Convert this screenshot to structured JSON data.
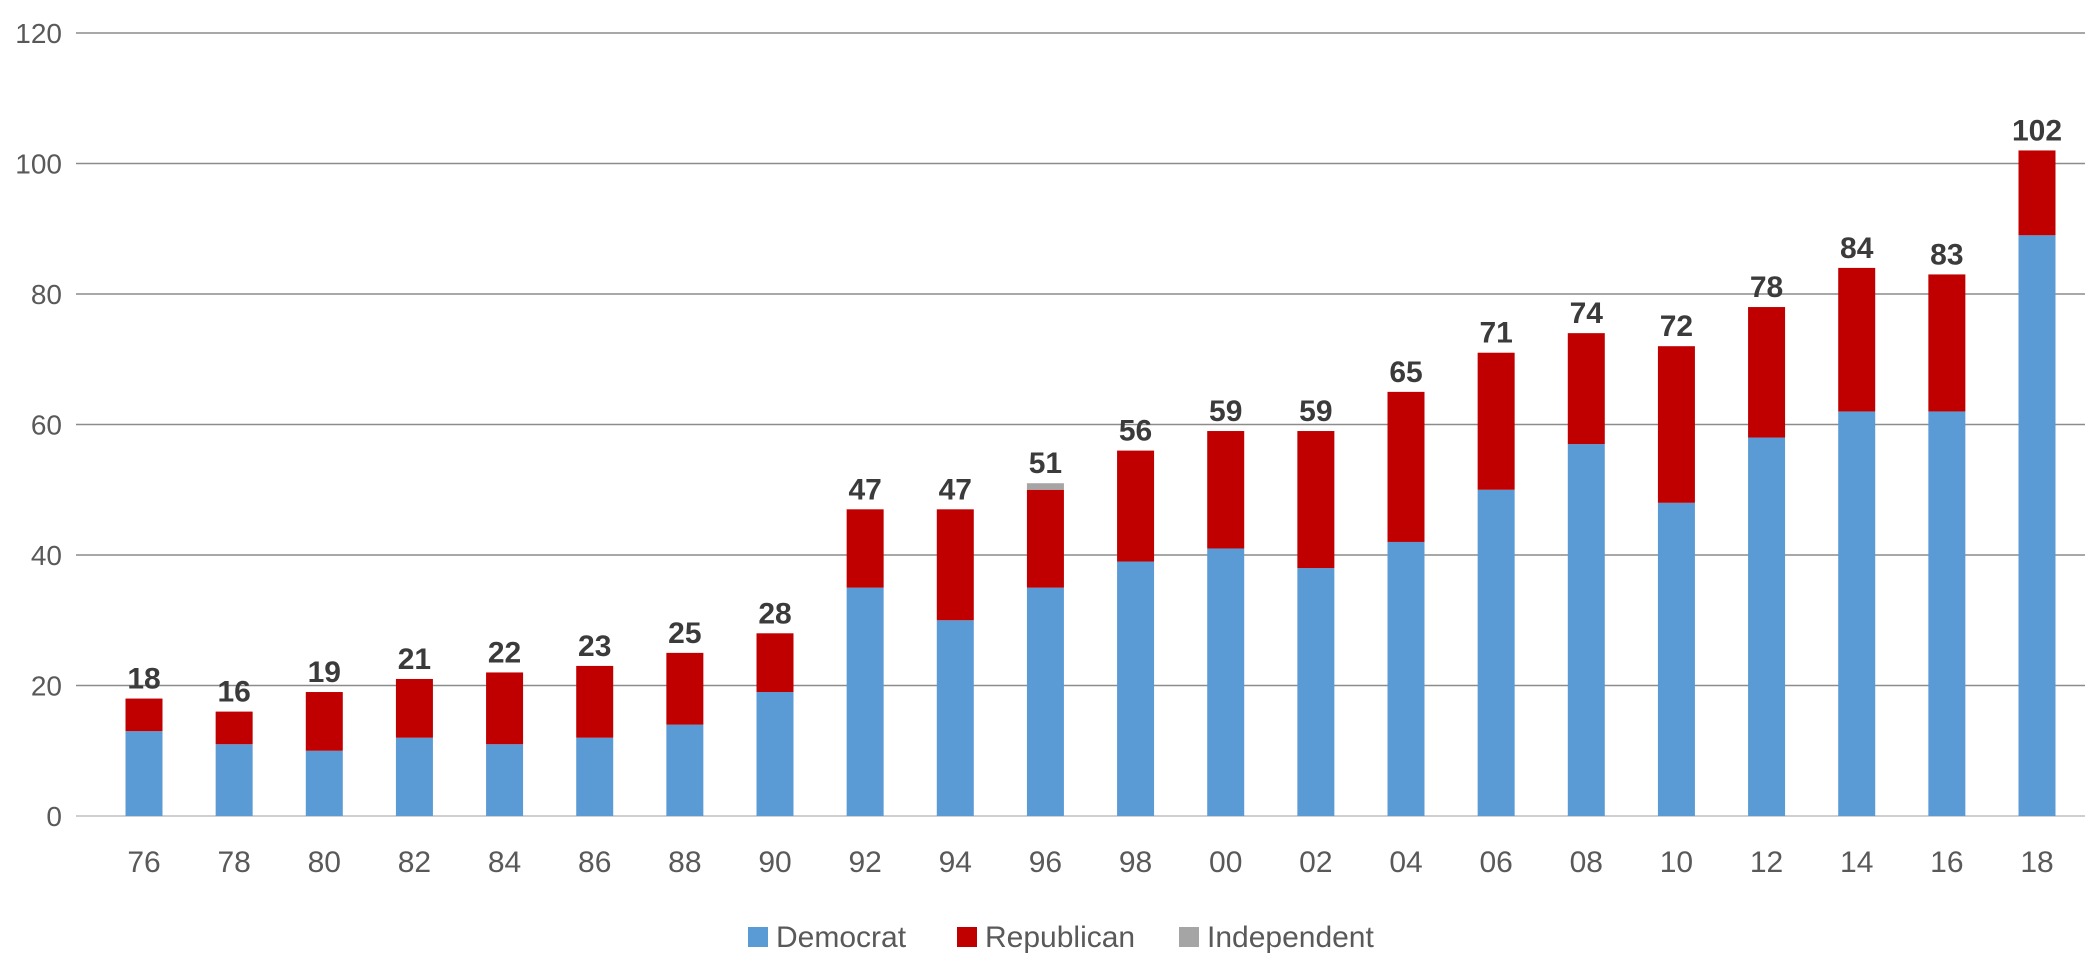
{
  "chart_data": {
    "type": "bar",
    "stacked": true,
    "categories": [
      "76",
      "78",
      "80",
      "82",
      "84",
      "86",
      "88",
      "90",
      "92",
      "94",
      "96",
      "98",
      "00",
      "02",
      "04",
      "06",
      "08",
      "10",
      "12",
      "14",
      "16",
      "18"
    ],
    "series": [
      {
        "name": "Democrat",
        "color": "#5b9bd5",
        "values": [
          13,
          11,
          10,
          12,
          11,
          12,
          14,
          19,
          35,
          30,
          35,
          39,
          41,
          38,
          42,
          50,
          57,
          48,
          58,
          62,
          62,
          89
        ]
      },
      {
        "name": "Republican",
        "color": "#c00000",
        "values": [
          5,
          5,
          9,
          9,
          11,
          11,
          11,
          9,
          12,
          17,
          15,
          17,
          18,
          21,
          23,
          21,
          17,
          24,
          20,
          22,
          21,
          13
        ]
      },
      {
        "name": "Independent",
        "color": "#a5a5a5",
        "values": [
          0,
          0,
          0,
          0,
          0,
          0,
          0,
          0,
          0,
          0,
          1,
          0,
          0,
          0,
          0,
          0,
          0,
          0,
          0,
          0,
          0,
          0
        ]
      }
    ],
    "totals": [
      18,
      16,
      19,
      21,
      22,
      23,
      25,
      28,
      47,
      47,
      51,
      56,
      59,
      59,
      65,
      71,
      74,
      72,
      78,
      84,
      83,
      102
    ],
    "y_ticks": [
      0,
      20,
      40,
      60,
      80,
      100,
      120
    ],
    "ylim": [
      0,
      120
    ],
    "grid": true,
    "legend_position": "bottom-center",
    "title": "",
    "xlabel": "",
    "ylabel": ""
  }
}
